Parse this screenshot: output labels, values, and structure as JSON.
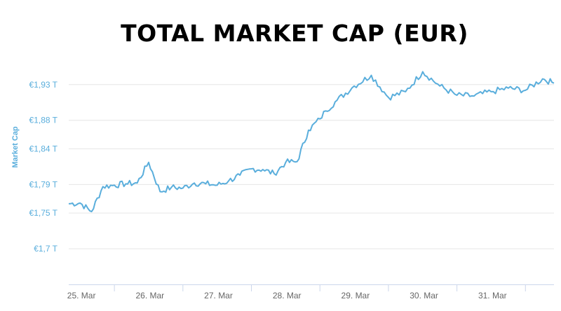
{
  "chart_data": {
    "type": "line",
    "title": "TOTAL MARKET CAP (EUR)",
    "xlabel": "",
    "ylabel": "Market Cap",
    "x_ticks": [
      "25. Mar",
      "26. Mar",
      "27. Mar",
      "28. Mar",
      "29. Mar",
      "30. Mar",
      "31. Mar"
    ],
    "y_ticks": [
      "€1,7 T",
      "€1,75 T",
      "€1,79 T",
      "€1,84 T",
      "€1,88 T",
      "€1,93 T"
    ],
    "y_tick_values": [
      1.7,
      1.75,
      1.79,
      1.84,
      1.88,
      1.93
    ],
    "y_units": "trillion EUR",
    "xlim": [
      "24. Mar 08:00",
      "31. Mar 10:00"
    ],
    "ylim": [
      1.65,
      1.97
    ],
    "grid": "horizontal",
    "legend": "none",
    "series": [
      {
        "x": [
          "24. Mar 08:00",
          "24. Mar 12:00",
          "24. Mar 16:00",
          "24. Mar 20:00",
          "25. Mar 00:00",
          "25. Mar 04:00",
          "25. Mar 08:00",
          "25. Mar 12:00",
          "25. Mar 16:00",
          "25. Mar 20:00",
          "26. Mar 00:00",
          "26. Mar 04:00",
          "26. Mar 08:00",
          "26. Mar 12:00",
          "26. Mar 16:00",
          "26. Mar 20:00",
          "27. Mar 00:00",
          "27. Mar 04:00",
          "27. Mar 08:00",
          "27. Mar 12:00",
          "27. Mar 16:00",
          "27. Mar 20:00",
          "28. Mar 00:00",
          "28. Mar 02:00",
          "28. Mar 06:00",
          "28. Mar 12:00",
          "28. Mar 18:00",
          "29. Mar 00:00",
          "29. Mar 06:00",
          "29. Mar 12:00",
          "29. Mar 18:00",
          "30. Mar 00:00",
          "30. Mar 06:00",
          "30. Mar 12:00",
          "30. Mar 18:00",
          "31. Mar 00:00",
          "31. Mar 06:00",
          "31. Mar 10:00"
        ],
        "values": [
          1.763,
          1.764,
          1.752,
          1.787,
          1.789,
          1.791,
          1.792,
          1.821,
          1.78,
          1.786,
          1.785,
          1.792,
          1.791,
          1.789,
          1.795,
          1.803,
          1.812,
          1.811,
          1.805,
          1.821,
          1.822,
          1.866,
          1.882,
          1.893,
          1.908,
          1.928,
          1.943,
          1.912,
          1.92,
          1.948,
          1.928,
          1.915,
          1.914,
          1.92,
          1.925,
          1.922,
          1.938,
          1.932
        ]
      }
    ],
    "colors": {
      "line": "#5aaedc",
      "label": "#5aaedc",
      "grid": "#e6e6e6",
      "axis": "#ccd6eb",
      "title": "#000000"
    }
  }
}
